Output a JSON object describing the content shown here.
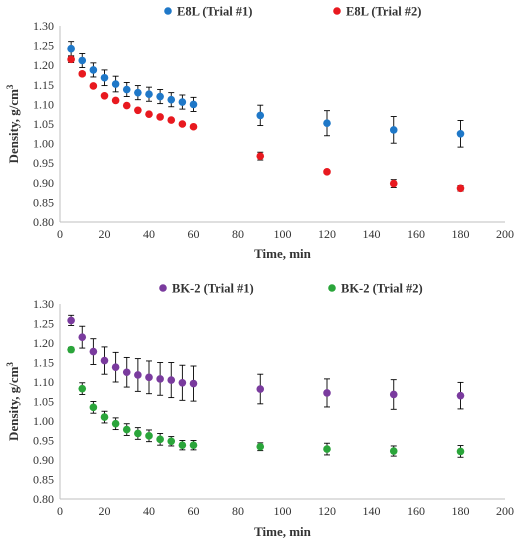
{
  "chart_data": [
    {
      "type": "scatter",
      "xlabel": "Time, min",
      "ylabel": "Density, g/cm",
      "ylabel_sup": "3",
      "xlim": [
        0,
        200
      ],
      "ylim": [
        0.8,
        1.3
      ],
      "xticks": [
        "0",
        "20",
        "40",
        "60",
        "80",
        "100",
        "120",
        "140",
        "160",
        "180",
        "200"
      ],
      "yticks": [
        "0.80",
        "0.85",
        "0.90",
        "0.95",
        "1.00",
        "1.05",
        "1.10",
        "1.15",
        "1.20",
        "1.25",
        "1.30"
      ],
      "grid": false,
      "legend_position": "top",
      "series": [
        {
          "name": "E8L (Trial #1)",
          "color": "#1f78c8",
          "x": [
            5,
            10,
            15,
            20,
            25,
            30,
            35,
            40,
            45,
            50,
            55,
            60,
            90,
            120,
            150,
            180
          ],
          "y": [
            1.242,
            1.212,
            1.188,
            1.168,
            1.152,
            1.138,
            1.13,
            1.126,
            1.12,
            1.112,
            1.106,
            1.1,
            1.072,
            1.052,
            1.035,
            1.025
          ],
          "err": [
            0.018,
            0.018,
            0.018,
            0.02,
            0.02,
            0.018,
            0.018,
            0.018,
            0.018,
            0.018,
            0.018,
            0.018,
            0.026,
            0.032,
            0.034,
            0.034
          ]
        },
        {
          "name": "E8L (Trial #2)",
          "color": "#e8191f",
          "x": [
            5,
            10,
            15,
            20,
            25,
            30,
            35,
            40,
            45,
            50,
            55,
            60,
            90,
            120,
            150,
            180
          ],
          "y": [
            1.215,
            1.178,
            1.147,
            1.122,
            1.11,
            1.097,
            1.085,
            1.075,
            1.068,
            1.06,
            1.05,
            1.043,
            0.968,
            0.928,
            0.898,
            0.886
          ],
          "err": [
            0.008,
            0.005,
            0.004,
            0.004,
            0.004,
            0.004,
            0.004,
            0.004,
            0.004,
            0.004,
            0.004,
            0.004,
            0.01,
            0.004,
            0.01,
            0.007
          ]
        }
      ]
    },
    {
      "type": "scatter",
      "xlabel": "Time, min",
      "ylabel": "Density, g/cm",
      "ylabel_sup": "3",
      "xlim": [
        0,
        200
      ],
      "ylim": [
        0.8,
        1.3
      ],
      "xticks": [
        "0",
        "20",
        "40",
        "60",
        "80",
        "100",
        "120",
        "140",
        "160",
        "180",
        "200"
      ],
      "yticks": [
        "0.80",
        "0.85",
        "0.90",
        "0.95",
        "1.00",
        "1.05",
        "1.10",
        "1.15",
        "1.20",
        "1.25",
        "1.30"
      ],
      "grid": false,
      "legend_position": "top",
      "series": [
        {
          "name": "BK-2 (Trial #1)",
          "color": "#7a3b9e",
          "x": [
            5,
            10,
            15,
            20,
            25,
            30,
            35,
            40,
            45,
            50,
            55,
            60,
            90,
            120,
            150,
            180
          ],
          "y": [
            1.258,
            1.215,
            1.178,
            1.155,
            1.138,
            1.125,
            1.118,
            1.112,
            1.108,
            1.105,
            1.098,
            1.096,
            1.082,
            1.072,
            1.068,
            1.065
          ],
          "err": [
            0.013,
            0.028,
            0.033,
            0.035,
            0.038,
            0.038,
            0.042,
            0.042,
            0.042,
            0.045,
            0.045,
            0.045,
            0.038,
            0.036,
            0.038,
            0.034
          ]
        },
        {
          "name": "BK-2 (Trial #2)",
          "color": "#2aa53a",
          "x": [
            5,
            10,
            15,
            20,
            25,
            30,
            35,
            40,
            45,
            50,
            55,
            60,
            90,
            120,
            150,
            180
          ],
          "y": [
            1.183,
            1.083,
            1.035,
            1.01,
            0.993,
            0.978,
            0.968,
            0.962,
            0.953,
            0.948,
            0.938,
            0.938,
            0.934,
            0.928,
            0.923,
            0.922
          ],
          "err": [
            0.006,
            0.015,
            0.015,
            0.015,
            0.015,
            0.015,
            0.015,
            0.015,
            0.015,
            0.012,
            0.012,
            0.012,
            0.01,
            0.015,
            0.013,
            0.015
          ]
        }
      ]
    }
  ]
}
